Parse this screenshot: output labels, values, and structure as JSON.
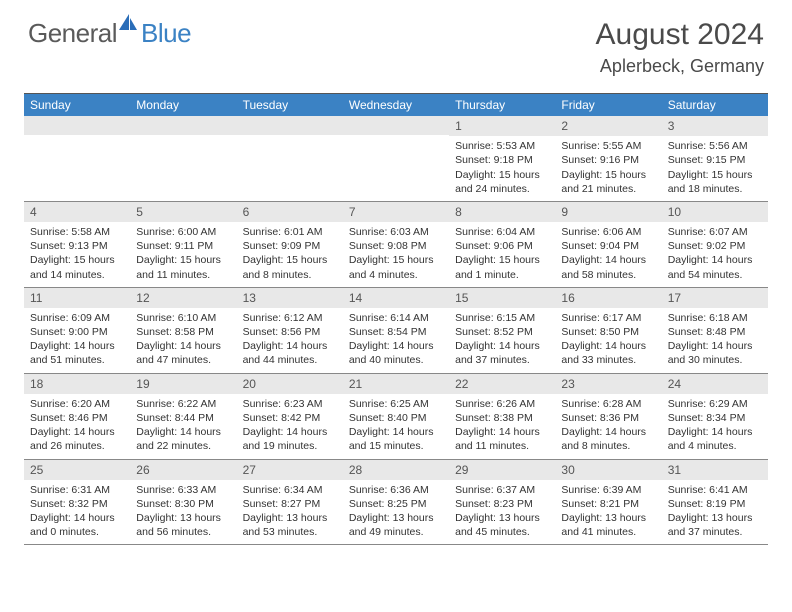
{
  "logo": {
    "text_general": "General",
    "text_blue": "Blue",
    "accent_color": "#2a6db8"
  },
  "title": "August 2024",
  "location": "Aplerbeck, Germany",
  "header_bg": "#3b82c4",
  "day_names": [
    "Sunday",
    "Monday",
    "Tuesday",
    "Wednesday",
    "Thursday",
    "Friday",
    "Saturday"
  ],
  "weeks": [
    [
      {
        "n": "",
        "lines": []
      },
      {
        "n": "",
        "lines": []
      },
      {
        "n": "",
        "lines": []
      },
      {
        "n": "",
        "lines": []
      },
      {
        "n": "1",
        "lines": [
          "Sunrise: 5:53 AM",
          "Sunset: 9:18 PM",
          "Daylight: 15 hours and 24 minutes."
        ]
      },
      {
        "n": "2",
        "lines": [
          "Sunrise: 5:55 AM",
          "Sunset: 9:16 PM",
          "Daylight: 15 hours and 21 minutes."
        ]
      },
      {
        "n": "3",
        "lines": [
          "Sunrise: 5:56 AM",
          "Sunset: 9:15 PM",
          "Daylight: 15 hours and 18 minutes."
        ]
      }
    ],
    [
      {
        "n": "4",
        "lines": [
          "Sunrise: 5:58 AM",
          "Sunset: 9:13 PM",
          "Daylight: 15 hours and 14 minutes."
        ]
      },
      {
        "n": "5",
        "lines": [
          "Sunrise: 6:00 AM",
          "Sunset: 9:11 PM",
          "Daylight: 15 hours and 11 minutes."
        ]
      },
      {
        "n": "6",
        "lines": [
          "Sunrise: 6:01 AM",
          "Sunset: 9:09 PM",
          "Daylight: 15 hours and 8 minutes."
        ]
      },
      {
        "n": "7",
        "lines": [
          "Sunrise: 6:03 AM",
          "Sunset: 9:08 PM",
          "Daylight: 15 hours and 4 minutes."
        ]
      },
      {
        "n": "8",
        "lines": [
          "Sunrise: 6:04 AM",
          "Sunset: 9:06 PM",
          "Daylight: 15 hours and 1 minute."
        ]
      },
      {
        "n": "9",
        "lines": [
          "Sunrise: 6:06 AM",
          "Sunset: 9:04 PM",
          "Daylight: 14 hours and 58 minutes."
        ]
      },
      {
        "n": "10",
        "lines": [
          "Sunrise: 6:07 AM",
          "Sunset: 9:02 PM",
          "Daylight: 14 hours and 54 minutes."
        ]
      }
    ],
    [
      {
        "n": "11",
        "lines": [
          "Sunrise: 6:09 AM",
          "Sunset: 9:00 PM",
          "Daylight: 14 hours and 51 minutes."
        ]
      },
      {
        "n": "12",
        "lines": [
          "Sunrise: 6:10 AM",
          "Sunset: 8:58 PM",
          "Daylight: 14 hours and 47 minutes."
        ]
      },
      {
        "n": "13",
        "lines": [
          "Sunrise: 6:12 AM",
          "Sunset: 8:56 PM",
          "Daylight: 14 hours and 44 minutes."
        ]
      },
      {
        "n": "14",
        "lines": [
          "Sunrise: 6:14 AM",
          "Sunset: 8:54 PM",
          "Daylight: 14 hours and 40 minutes."
        ]
      },
      {
        "n": "15",
        "lines": [
          "Sunrise: 6:15 AM",
          "Sunset: 8:52 PM",
          "Daylight: 14 hours and 37 minutes."
        ]
      },
      {
        "n": "16",
        "lines": [
          "Sunrise: 6:17 AM",
          "Sunset: 8:50 PM",
          "Daylight: 14 hours and 33 minutes."
        ]
      },
      {
        "n": "17",
        "lines": [
          "Sunrise: 6:18 AM",
          "Sunset: 8:48 PM",
          "Daylight: 14 hours and 30 minutes."
        ]
      }
    ],
    [
      {
        "n": "18",
        "lines": [
          "Sunrise: 6:20 AM",
          "Sunset: 8:46 PM",
          "Daylight: 14 hours and 26 minutes."
        ]
      },
      {
        "n": "19",
        "lines": [
          "Sunrise: 6:22 AM",
          "Sunset: 8:44 PM",
          "Daylight: 14 hours and 22 minutes."
        ]
      },
      {
        "n": "20",
        "lines": [
          "Sunrise: 6:23 AM",
          "Sunset: 8:42 PM",
          "Daylight: 14 hours and 19 minutes."
        ]
      },
      {
        "n": "21",
        "lines": [
          "Sunrise: 6:25 AM",
          "Sunset: 8:40 PM",
          "Daylight: 14 hours and 15 minutes."
        ]
      },
      {
        "n": "22",
        "lines": [
          "Sunrise: 6:26 AM",
          "Sunset: 8:38 PM",
          "Daylight: 14 hours and 11 minutes."
        ]
      },
      {
        "n": "23",
        "lines": [
          "Sunrise: 6:28 AM",
          "Sunset: 8:36 PM",
          "Daylight: 14 hours and 8 minutes."
        ]
      },
      {
        "n": "24",
        "lines": [
          "Sunrise: 6:29 AM",
          "Sunset: 8:34 PM",
          "Daylight: 14 hours and 4 minutes."
        ]
      }
    ],
    [
      {
        "n": "25",
        "lines": [
          "Sunrise: 6:31 AM",
          "Sunset: 8:32 PM",
          "Daylight: 14 hours and 0 minutes."
        ]
      },
      {
        "n": "26",
        "lines": [
          "Sunrise: 6:33 AM",
          "Sunset: 8:30 PM",
          "Daylight: 13 hours and 56 minutes."
        ]
      },
      {
        "n": "27",
        "lines": [
          "Sunrise: 6:34 AM",
          "Sunset: 8:27 PM",
          "Daylight: 13 hours and 53 minutes."
        ]
      },
      {
        "n": "28",
        "lines": [
          "Sunrise: 6:36 AM",
          "Sunset: 8:25 PM",
          "Daylight: 13 hours and 49 minutes."
        ]
      },
      {
        "n": "29",
        "lines": [
          "Sunrise: 6:37 AM",
          "Sunset: 8:23 PM",
          "Daylight: 13 hours and 45 minutes."
        ]
      },
      {
        "n": "30",
        "lines": [
          "Sunrise: 6:39 AM",
          "Sunset: 8:21 PM",
          "Daylight: 13 hours and 41 minutes."
        ]
      },
      {
        "n": "31",
        "lines": [
          "Sunrise: 6:41 AM",
          "Sunset: 8:19 PM",
          "Daylight: 13 hours and 37 minutes."
        ]
      }
    ]
  ]
}
